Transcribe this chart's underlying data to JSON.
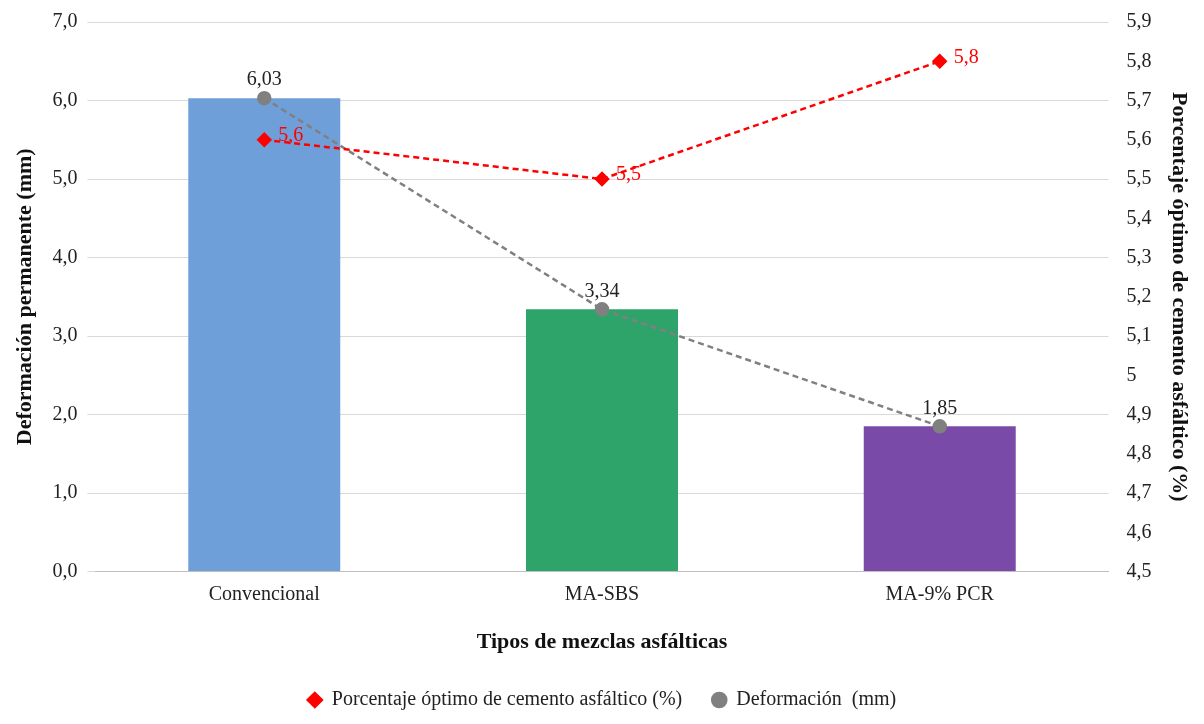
{
  "chart_data": {
    "type": "bar",
    "xlabel": "Tipos de mezclas asfálticas",
    "ylabel": "Deformación permanente (mm)",
    "y2label": "Porcentaje óptimo de cemento asfáltico (%)",
    "categories": [
      "Convencional",
      "MA-SBS",
      "MA-9% PCR"
    ],
    "series": [
      {
        "colors": [
          "#6f9fd8",
          "#2ea36a",
          "#7a4aa8"
        ],
        "values": [
          6.03,
          3.34,
          1.85
        ]
      },
      {
        "type": "line",
        "axis": "y2",
        "name": "Porcentaje óptimo de cemento asfáltico (%)",
        "color": "#ff0000",
        "marker": "diamond",
        "line_style": "dashed",
        "values": [
          5.6,
          5.5,
          5.8
        ],
        "value_labels": [
          "5,6",
          "5,5",
          "5,8"
        ]
      },
      {
        "type": "line",
        "name": "Deformación  (mm)",
        "color": "#808080",
        "marker": "circle",
        "line_style": "dashed",
        "values": [
          6.03,
          3.34,
          1.85
        ],
        "value_labels": [
          "6,03",
          "3,34",
          "1,85"
        ]
      }
    ],
    "ylim": [
      0,
      7
    ],
    "yticks": [
      {
        "value": 0,
        "label": "0,0"
      },
      {
        "value": 1,
        "label": "1,0"
      },
      {
        "value": 2,
        "label": "2,0"
      },
      {
        "value": 3,
        "label": "3,0"
      },
      {
        "value": 4,
        "label": "4,0"
      },
      {
        "value": 5,
        "label": "5,0"
      },
      {
        "value": 6,
        "label": "6,0"
      },
      {
        "value": 7,
        "label": "7,0"
      }
    ],
    "y2lim": [
      4.5,
      5.9
    ],
    "y2ticks": [
      {
        "value": 4.5,
        "label": "4,5"
      },
      {
        "value": 4.6,
        "label": "4,6"
      },
      {
        "value": 4.7,
        "label": "4,7"
      },
      {
        "value": 4.8,
        "label": "4,8"
      },
      {
        "value": 4.9,
        "label": "4,9"
      },
      5,
      {
        "value": 5.1,
        "label": "5,1"
      },
      {
        "value": 5.2,
        "label": "5,2"
      },
      {
        "value": 5.3,
        "label": "5,3"
      },
      {
        "value": 5.4,
        "label": "5,4"
      },
      {
        "value": 5.5,
        "label": "5,5"
      },
      {
        "value": 5.6,
        "label": "5,6"
      },
      {
        "value": 5.7,
        "label": "5,7"
      },
      {
        "value": 5.8,
        "label": "5,8"
      },
      {
        "value": 5.9,
        "label": "5,9"
      }
    ],
    "grid": "y",
    "legend": "bottom"
  }
}
